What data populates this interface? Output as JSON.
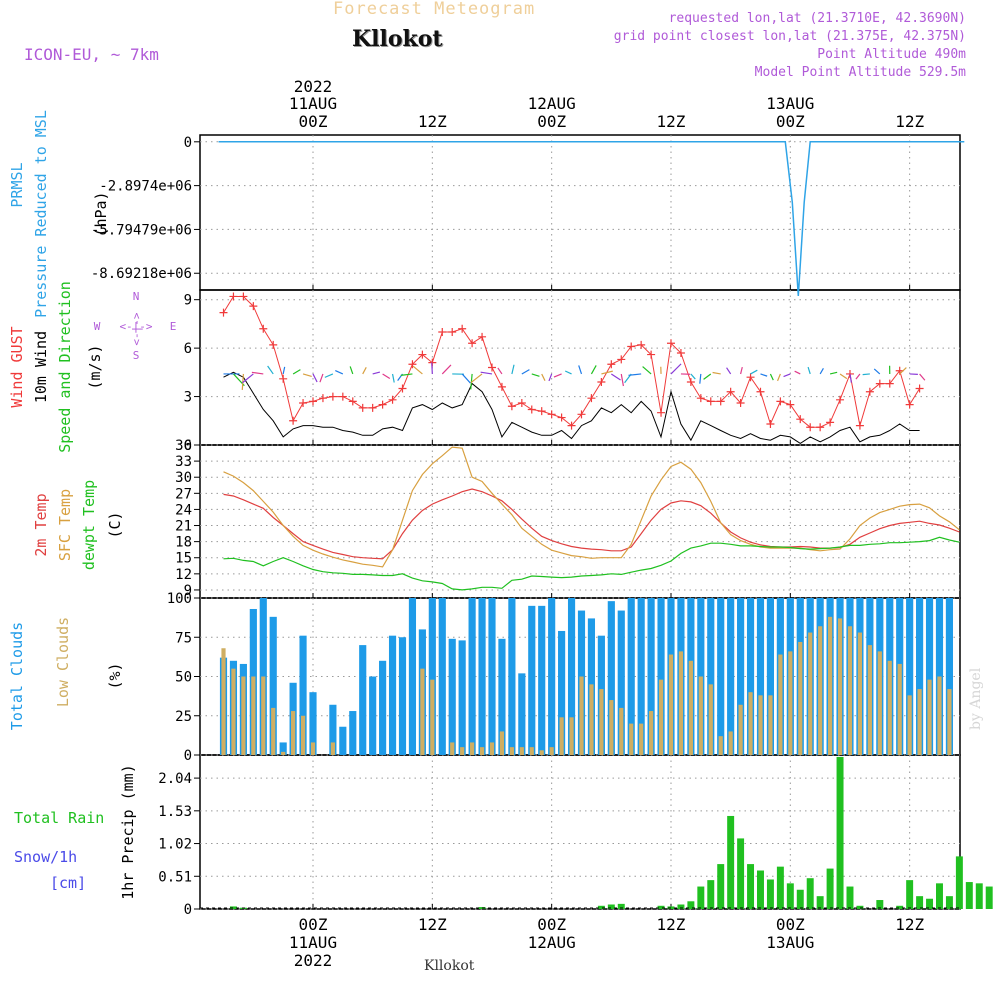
{
  "header": {
    "product_title": "Forecast Meteogram",
    "location": "Kllokot",
    "model": "ICON-EU, ~ 7km",
    "requested": "requested lon,lat (21.3710E, 42.3690N)",
    "grid_point": "grid point closest lon,lat (21.375E, 42.375N)",
    "point_altitude": "Point Altitude 490m",
    "model_altitude": "Model Point Altitude 529.5m",
    "footer_location": "Kllokot",
    "credit": "by Angel"
  },
  "colors": {
    "pressure": "#2fa4e7",
    "gust": "#f03a3a",
    "wind": "#000000",
    "dir_green": "#20c020",
    "temp2m": "#e04040",
    "sfc": "#d8a040",
    "dewpt": "#20c020",
    "total_clouds": "#1e9be8",
    "low_clouds": "#cfae62",
    "rain": "#20c020",
    "snow": "#4a4ae8",
    "purple": "#b05ad8"
  },
  "time_axis": {
    "top": [
      {
        "year": "2022",
        "day": "11AUG",
        "hour": "00Z"
      },
      {
        "hour": "12Z"
      },
      {
        "day": "12AUG",
        "hour": "00Z"
      },
      {
        "hour": "12Z"
      },
      {
        "day": "13AUG",
        "hour": "00Z"
      },
      {
        "hour": "12Z"
      }
    ],
    "bottom": [
      {
        "hour": "00Z",
        "day": "11AUG",
        "year": "2022"
      },
      {
        "hour": "12Z"
      },
      {
        "hour": "00Z",
        "day": "12AUG"
      },
      {
        "hour": "12Z"
      },
      {
        "hour": "00Z",
        "day": "13AUG"
      },
      {
        "hour": "12Z"
      }
    ]
  },
  "compass": {
    "n": "N",
    "s": "S",
    "w": "W",
    "e": "E",
    "arrow": "<-|->"
  },
  "chart_data": [
    {
      "type": "line",
      "ylabel_lines": [
        "PRMSL",
        "Pressure Reduced to MSL"
      ],
      "unit": "(hPa)",
      "yticks": [
        "0",
        "-2.8974e+06",
        "-5.79479e+06",
        "-8.69218e+06"
      ],
      "ylim": [
        -9800000,
        450000
      ],
      "series": [
        {
          "values": [
            [
              -9.5,
              0
            ],
            [
              47.5,
              0
            ],
            [
              48.2,
              -4000000
            ],
            [
              48.8,
              -10200000
            ],
            [
              49.4,
              -4000000
            ],
            [
              50,
              0
            ],
            [
              65.5,
              0
            ]
          ]
        }
      ]
    },
    {
      "type": "line",
      "ylabel_lines": [
        "Wind GUST",
        "10m Wind",
        "Speed and Direction"
      ],
      "unit": "(m/s)",
      "yticks": [
        "0",
        "3",
        "6",
        "9"
      ],
      "ylim": [
        0,
        9.6
      ],
      "series": [
        {
          "name": "Wind GUST",
          "values": [
            8.2,
            9.2,
            9.2,
            8.6,
            7.2,
            6.2,
            4.1,
            1.5,
            2.6,
            2.7,
            2.9,
            3.0,
            3.0,
            2.7,
            2.3,
            2.3,
            2.5,
            2.8,
            3.5,
            5.0,
            5.6,
            5.1,
            7.0,
            7.0,
            7.2,
            6.3,
            6.7,
            4.8,
            3.6,
            2.4,
            2.6,
            2.2,
            2.1,
            1.9,
            1.7,
            1.2,
            1.9,
            2.9,
            3.9,
            5.0,
            5.3,
            6.1,
            6.2,
            5.6,
            2.0,
            6.3,
            5.7,
            3.9,
            2.9,
            2.7,
            2.7,
            3.3,
            2.6,
            4.2,
            3.3,
            1.3,
            2.7,
            2.5,
            1.6,
            1.1,
            1.1,
            1.4,
            2.8,
            4.4,
            1.2,
            3.3,
            3.8,
            3.8,
            4.6,
            2.5,
            3.5
          ]
        },
        {
          "name": "10m Wind",
          "values": [
            4.2,
            4.5,
            4.2,
            3.2,
            2.2,
            1.5,
            0.5,
            1.0,
            1.2,
            1.2,
            1.1,
            1.1,
            0.9,
            0.8,
            0.6,
            0.6,
            1.0,
            1.1,
            0.9,
            2.3,
            2.5,
            2.2,
            2.6,
            2.3,
            2.5,
            3.8,
            3.3,
            2.2,
            0.5,
            1.4,
            1.1,
            0.8,
            0.6,
            0.6,
            0.9,
            0.4,
            1.2,
            1.5,
            2.3,
            2.0,
            2.5,
            2.0,
            2.7,
            2.1,
            0.5,
            3.3,
            1.3,
            0.3,
            1.5,
            1.2,
            0.9,
            0.6,
            0.4,
            0.7,
            0.4,
            0.3,
            0.6,
            0.5,
            0.1,
            0.5,
            0.2,
            0.5,
            0.9,
            1.1,
            0.2,
            0.5,
            0.6,
            0.9,
            1.3,
            0.9,
            0.9
          ]
        }
      ]
    },
    {
      "type": "line",
      "ylabel_lines": [
        "2m Temp",
        "SFC Temp",
        "dewpt Temp"
      ],
      "unit": "(C)",
      "yticks": [
        "9",
        "12",
        "15",
        "18",
        "21",
        "24",
        "27",
        "30",
        "33",
        "36"
      ],
      "ylim": [
        7.5,
        36
      ],
      "series": [
        {
          "name": "2m Temp",
          "values": [
            26.8,
            26.5,
            25.8,
            25.0,
            24.2,
            22.5,
            21.0,
            19.5,
            18.0,
            17.3,
            16.6,
            16.0,
            15.6,
            15.2,
            15.0,
            14.9,
            14.8,
            16.5,
            19.5,
            22.0,
            23.8,
            25.0,
            25.8,
            26.5,
            27.3,
            27.8,
            27.3,
            26.5,
            25.6,
            24.0,
            22.2,
            20.5,
            19.0,
            18.2,
            17.6,
            17.1,
            16.8,
            16.6,
            16.5,
            16.3,
            16.3,
            17.0,
            19.5,
            22.0,
            24.0,
            25.2,
            25.6,
            25.4,
            24.7,
            23.3,
            21.5,
            19.8,
            18.7,
            17.9,
            17.4,
            17.1,
            17.0,
            17.0,
            17.1,
            17.0,
            16.8,
            16.8,
            16.9,
            17.5,
            18.8,
            19.6,
            20.4,
            21.0,
            21.4,
            21.6,
            21.8,
            21.4,
            21.1,
            20.5,
            19.8
          ]
        },
        {
          "name": "SFC Temp",
          "values": [
            31.0,
            30.2,
            29.0,
            27.5,
            25.5,
            23.5,
            21.0,
            19.0,
            17.3,
            16.4,
            15.7,
            15.1,
            14.6,
            14.2,
            13.8,
            13.6,
            13.3,
            16.5,
            22.0,
            27.5,
            30.5,
            32.5,
            34.0,
            35.6,
            35.4,
            30.0,
            29.2,
            27.0,
            25.0,
            23.0,
            20.5,
            19.0,
            17.5,
            16.4,
            15.9,
            15.4,
            15.2,
            14.9,
            15.0,
            15.0,
            15.0,
            17.5,
            22.0,
            26.5,
            29.5,
            32.0,
            32.8,
            31.5,
            29.0,
            25.5,
            21.5,
            19.3,
            18.2,
            17.5,
            17.0,
            16.8,
            16.8,
            16.8,
            16.8,
            16.5,
            16.3,
            16.5,
            16.6,
            18.5,
            21.0,
            22.4,
            23.4,
            24.0,
            24.6,
            24.9,
            25.0,
            24.3,
            22.8,
            21.7,
            20.2
          ]
        },
        {
          "name": "dewpt Temp",
          "values": [
            14.8,
            14.9,
            14.5,
            14.3,
            13.5,
            14.3,
            15.0,
            14.3,
            13.5,
            12.8,
            12.4,
            12.2,
            12.1,
            11.9,
            11.9,
            11.8,
            11.7,
            11.7,
            12.0,
            11.2,
            10.7,
            10.5,
            10.2,
            9.2,
            9.0,
            9.2,
            9.5,
            9.5,
            9.3,
            10.8,
            11.0,
            11.6,
            11.5,
            11.4,
            11.3,
            11.4,
            11.6,
            11.7,
            11.8,
            12.0,
            11.9,
            12.3,
            12.7,
            13.0,
            13.6,
            14.4,
            15.8,
            16.8,
            17.2,
            17.7,
            17.7,
            17.5,
            17.2,
            17.2,
            17.1,
            17.0,
            17.0,
            16.9,
            16.7,
            16.6,
            16.7,
            16.8,
            17.0,
            17.3,
            17.3,
            17.5,
            17.6,
            17.8,
            17.8,
            17.9,
            18.0,
            18.2,
            18.8,
            18.3,
            17.9
          ]
        }
      ]
    },
    {
      "type": "bar",
      "ylabel_lines": [
        "Total Clouds",
        "Low Clouds"
      ],
      "unit": "(%)",
      "yticks": [
        "0",
        "25",
        "50",
        "75",
        "100"
      ],
      "ylim": [
        0,
        100
      ],
      "series": [
        {
          "name": "Total Clouds",
          "values": [
            62,
            60,
            58,
            93,
            100,
            88,
            8,
            46,
            76,
            40,
            0,
            32,
            18,
            28,
            70,
            50,
            60,
            76,
            75,
            100,
            80,
            100,
            100,
            74,
            73,
            100,
            100,
            100,
            74,
            100,
            52,
            95,
            95,
            100,
            79,
            100,
            92,
            87,
            76,
            98,
            92,
            100,
            100,
            100,
            100,
            100,
            100,
            100,
            100,
            100,
            100,
            100,
            100,
            100,
            100,
            100,
            100,
            100,
            100,
            100,
            100,
            100,
            100,
            100,
            100,
            100,
            100,
            100,
            100,
            100,
            100,
            100,
            100,
            100,
            100
          ]
        },
        {
          "name": "Low Clouds",
          "values": [
            68,
            55,
            50,
            50,
            50,
            30,
            2,
            28,
            25,
            8,
            0,
            8,
            0,
            0,
            0,
            0,
            0,
            0,
            0,
            0,
            55,
            48,
            0,
            8,
            5,
            8,
            5,
            8,
            15,
            5,
            5,
            5,
            3,
            5,
            24,
            24,
            50,
            45,
            42,
            35,
            30,
            20,
            20,
            28,
            48,
            64,
            66,
            60,
            50,
            45,
            12,
            15,
            32,
            40,
            38,
            38,
            64,
            66,
            72,
            78,
            82,
            88,
            87,
            82,
            78,
            70,
            66,
            60,
            58,
            38,
            42,
            48,
            50,
            42,
            30
          ]
        }
      ]
    },
    {
      "type": "bar",
      "ylabel_lines": [
        "Total  Rain",
        "Snow/1h",
        "[cm]"
      ],
      "axis_title": "1hr Precip (mm)",
      "yticks": [
        "0",
        "0.51",
        "1.02",
        "1.53",
        "2.04"
      ],
      "ylim": [
        0,
        2.4
      ],
      "series": [
        {
          "name": "Total  Rain",
          "values": [
            [
              -8,
              0.04
            ],
            [
              -7,
              0.02
            ],
            [
              17,
              0.03
            ],
            [
              29,
              0.05
            ],
            [
              30,
              0.07
            ],
            [
              31,
              0.08
            ],
            [
              35,
              0.05
            ],
            [
              36,
              0.04
            ],
            [
              37,
              0.07
            ],
            [
              38,
              0.12
            ],
            [
              39,
              0.35
            ],
            [
              40,
              0.45
            ],
            [
              41,
              0.7
            ],
            [
              42,
              1.45
            ],
            [
              43,
              1.1
            ],
            [
              44,
              0.7
            ],
            [
              45,
              0.6
            ],
            [
              46,
              0.46
            ],
            [
              47,
              0.66
            ],
            [
              48,
              0.4
            ],
            [
              49,
              0.3
            ],
            [
              50,
              0.48
            ],
            [
              51,
              0.2
            ],
            [
              52,
              0.63
            ],
            [
              53,
              2.37
            ],
            [
              54,
              0.35
            ],
            [
              55,
              0.05
            ],
            [
              57,
              0.14
            ],
            [
              59,
              0.05
            ],
            [
              60,
              0.45
            ],
            [
              61,
              0.2
            ],
            [
              62,
              0.16
            ],
            [
              63,
              0.4
            ],
            [
              64,
              0.2
            ],
            [
              65,
              0.82
            ],
            [
              66,
              0.42
            ],
            [
              67,
              0.4
            ],
            [
              68,
              0.35
            ]
          ]
        }
      ]
    }
  ]
}
